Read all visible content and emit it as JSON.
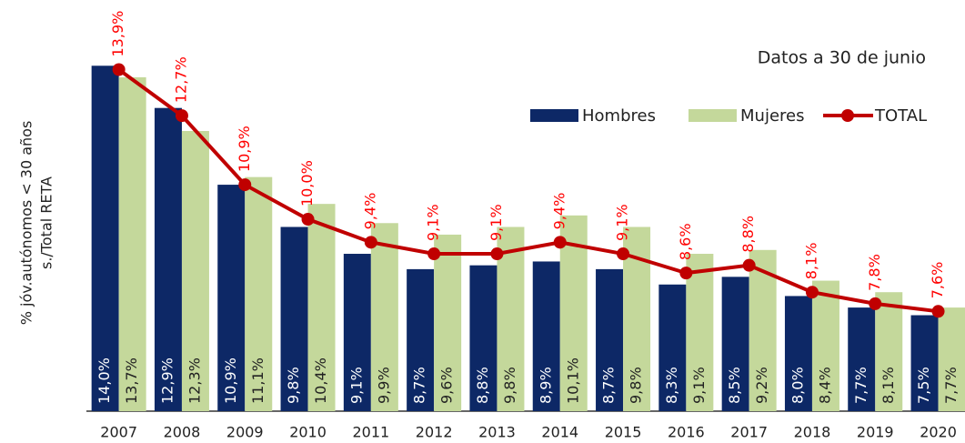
{
  "chart_data": {
    "type": "bar_line",
    "categories": [
      "2007",
      "2008",
      "2009",
      "2010",
      "2011",
      "2012",
      "2013",
      "2014",
      "2015",
      "2016",
      "2017",
      "2018",
      "2019",
      "2020"
    ],
    "series": [
      {
        "name": "Hombres",
        "color": "#0d2866",
        "type": "bar",
        "values": [
          14.0,
          12.9,
          10.9,
          9.8,
          9.1,
          8.7,
          8.8,
          8.9,
          8.7,
          8.3,
          8.5,
          8.0,
          7.7,
          7.5
        ],
        "value_labels": [
          "14,0%",
          "12,9%",
          "10,9%",
          "9,8%",
          "9,1%",
          "8,7%",
          "8,8%",
          "8,9%",
          "8,7%",
          "8,3%",
          "8,5%",
          "8,0%",
          "7,7%",
          "7,5%"
        ]
      },
      {
        "name": "Mujeres",
        "color": "#c4d89b",
        "type": "bar",
        "values": [
          13.7,
          12.3,
          11.1,
          10.4,
          9.9,
          9.6,
          9.8,
          10.1,
          9.8,
          9.1,
          9.2,
          8.4,
          8.1,
          7.7
        ],
        "value_labels": [
          "13,7%",
          "12,3%",
          "11,1%",
          "10,4%",
          "9,9%",
          "9,6%",
          "9,8%",
          "10,1%",
          "9,8%",
          "9,1%",
          "9,2%",
          "8,4%",
          "8,1%",
          "7,7%"
        ]
      },
      {
        "name": "TOTAL",
        "color": "#c00000",
        "type": "line",
        "values": [
          13.9,
          12.7,
          10.9,
          10.0,
          9.4,
          9.1,
          9.1,
          9.4,
          9.1,
          8.6,
          8.8,
          8.1,
          7.8,
          7.6
        ],
        "value_labels": [
          "13,9%",
          "12,7%",
          "10,9%",
          "10,0%",
          "9,4%",
          "9,1%",
          "9,1%",
          "9,4%",
          "9,1%",
          "8,6%",
          "8,8%",
          "8,1%",
          "7,8%",
          "7,6%"
        ]
      }
    ],
    "ylabel": [
      "% jóv.autónomos < 30 años",
      "s./Total RETA"
    ],
    "annotation": "Datos a 30 de junio",
    "ylim": [
      5,
      15.5
    ],
    "legend": "top-right",
    "line_label_color": "#ff0000"
  }
}
